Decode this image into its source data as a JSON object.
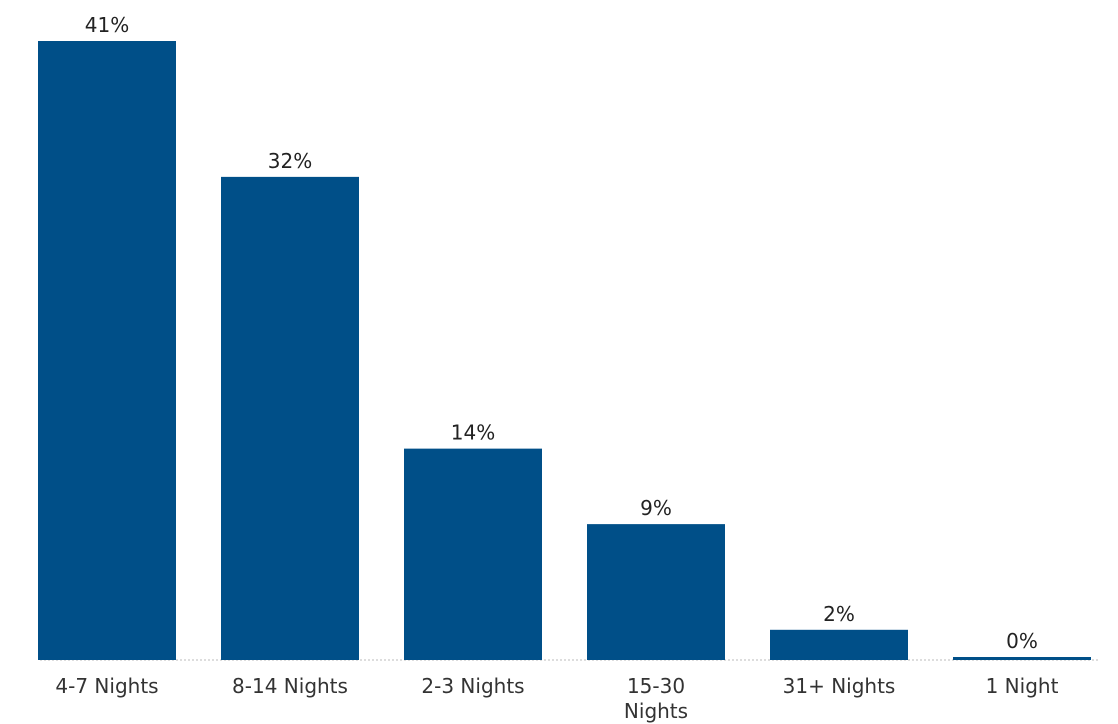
{
  "chart_data": {
    "type": "bar",
    "categories": [
      "4-7 Nights",
      "8-14 Nights",
      "2-3 Nights",
      "15-30 Nights",
      "31+ Nights",
      "1 Night"
    ],
    "category_lines": [
      [
        "4-7 Nights"
      ],
      [
        "8-14 Nights"
      ],
      [
        "2-3 Nights"
      ],
      [
        "15-30",
        "Nights"
      ],
      [
        "31+ Nights"
      ],
      [
        "1 Night"
      ]
    ],
    "values": [
      41,
      32,
      14,
      9,
      2,
      0
    ],
    "value_labels": [
      "41%",
      "32%",
      "14%",
      "9%",
      "2%",
      "0%"
    ],
    "ylim": [
      0,
      41
    ],
    "grid": false,
    "legend": "none",
    "colors": {
      "bar": "#004f88",
      "baseline": "#bbbbbb"
    }
  }
}
